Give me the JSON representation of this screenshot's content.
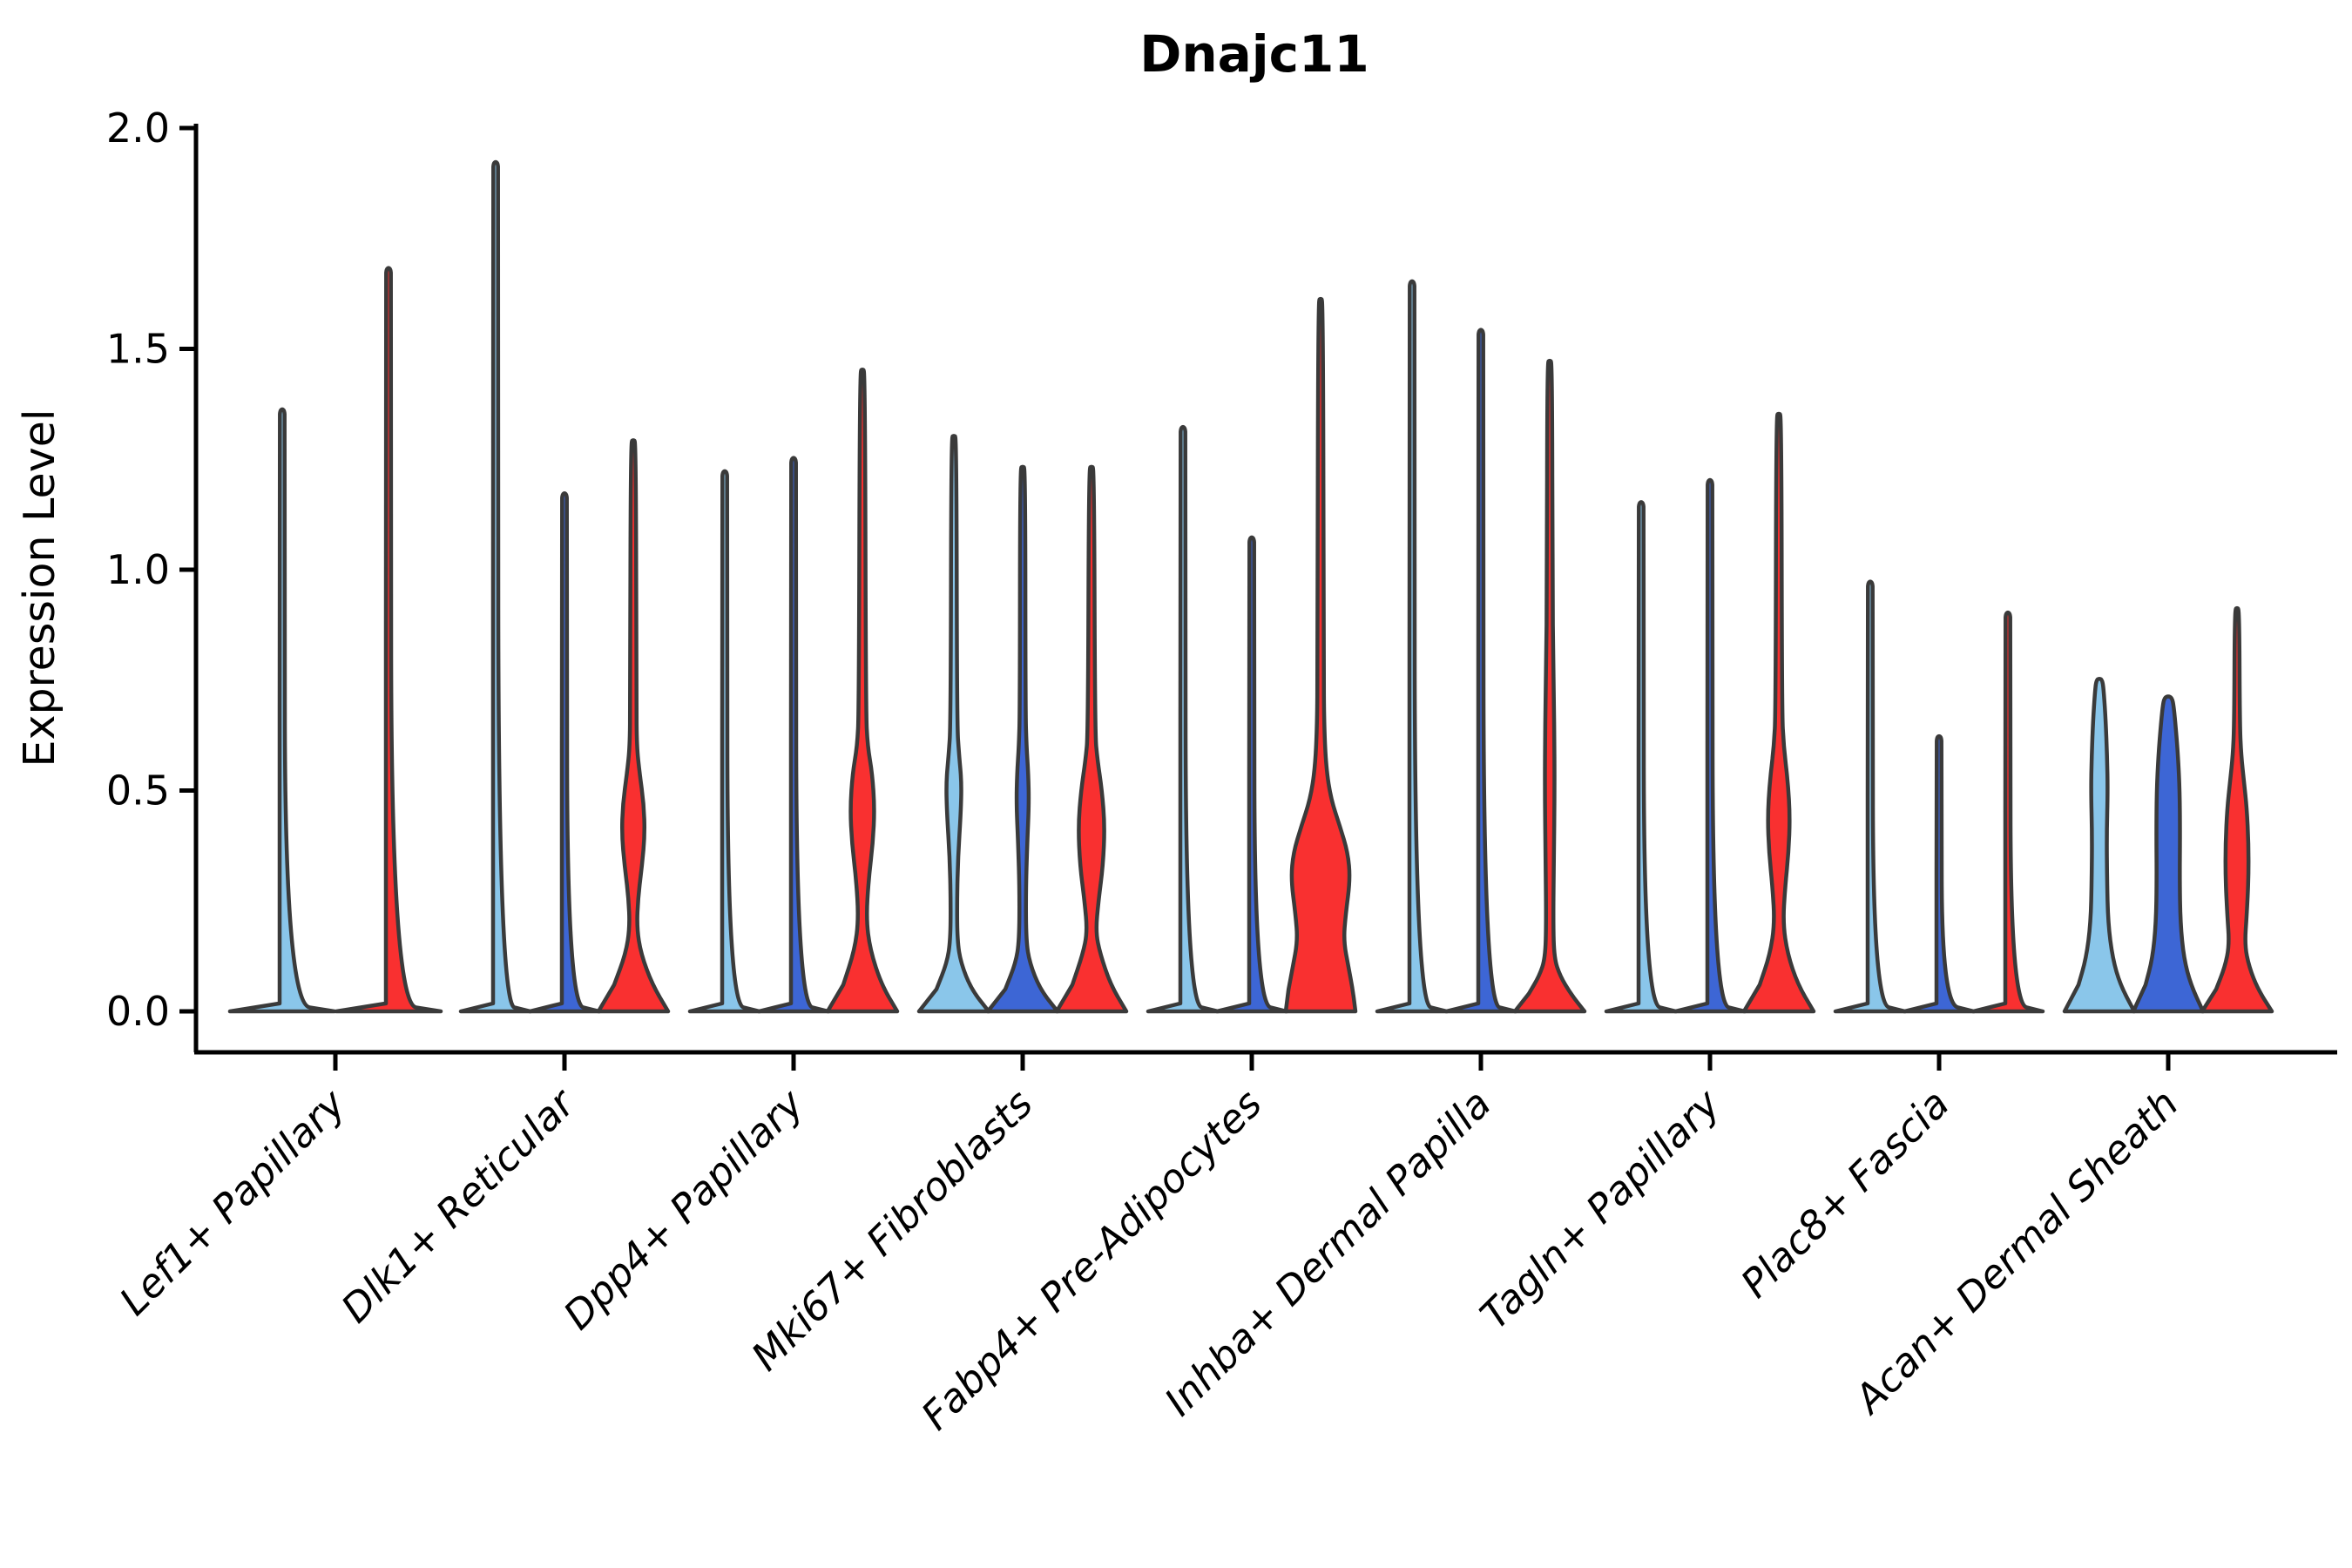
{
  "title": "Dnajc11",
  "y_axis": {
    "label": "Expression Level",
    "ticks": [
      "0.0",
      "0.5",
      "1.0",
      "1.5",
      "2.0"
    ],
    "tick_values": [
      0.0,
      0.5,
      1.0,
      1.5,
      2.0
    ],
    "range": [
      0.0,
      2.0
    ]
  },
  "colors": {
    "lightblue": "#8AC6EA",
    "blue": "#3D66D5",
    "red": "#F93030",
    "outline": "#3A3A3A",
    "axis": "#000000"
  },
  "chart_data": {
    "type": "violin",
    "title": "Dnajc11",
    "ylabel": "Expression Level",
    "ylim": [
      0.0,
      2.0
    ],
    "legend": "none",
    "grid": false,
    "note": "grouped violin plot, 3 split fills per cell type (lightblue, blue, red); profiles are [expression_value, relative_half_width] pairs",
    "groups": [
      {
        "label": "Lef1+ Papillary",
        "violins": [
          {
            "color": "lightblue",
            "max": 1.36,
            "shape": "spike"
          },
          {
            "color": "red",
            "max": 1.68,
            "shape": "spike"
          }
        ]
      },
      {
        "label": "Dlk1+ Reticular",
        "violins": [
          {
            "color": "lightblue",
            "max": 1.92,
            "shape": "spike"
          },
          {
            "color": "blue",
            "max": 1.17,
            "shape": "spike"
          },
          {
            "color": "red",
            "max": 1.29,
            "shape": "bulge",
            "p": [
              [
                0,
                1
              ],
              [
                0.06,
                0.55
              ],
              [
                0.13,
                0.22
              ],
              [
                0.19,
                0.1
              ],
              [
                0.26,
                0.14
              ],
              [
                0.33,
                0.25
              ],
              [
                0.4,
                0.33
              ],
              [
                0.47,
                0.3
              ],
              [
                0.54,
                0.18
              ],
              [
                0.6,
                0.1
              ],
              [
                0.7,
                0.09
              ],
              [
                1.29,
                0.075
              ]
            ]
          }
        ]
      },
      {
        "label": "Dpp4+ Papillary",
        "violins": [
          {
            "color": "lightblue",
            "max": 1.22,
            "shape": "spike"
          },
          {
            "color": "blue",
            "max": 1.25,
            "shape": "spike"
          },
          {
            "color": "red",
            "max": 1.45,
            "shape": "bulge",
            "p": [
              [
                0,
                1
              ],
              [
                0.06,
                0.55
              ],
              [
                0.14,
                0.22
              ],
              [
                0.21,
                0.11
              ],
              [
                0.3,
                0.18
              ],
              [
                0.38,
                0.3
              ],
              [
                0.46,
                0.35
              ],
              [
                0.54,
                0.28
              ],
              [
                0.6,
                0.15
              ],
              [
                0.68,
                0.1
              ],
              [
                1.45,
                0.075
              ]
            ]
          }
        ]
      },
      {
        "label": "Mki67+ Fibroblasts",
        "violins": [
          {
            "color": "lightblue",
            "max": 1.3,
            "shape": "bulge",
            "p": [
              [
                0,
                1
              ],
              [
                0.05,
                0.5
              ],
              [
                0.11,
                0.2
              ],
              [
                0.16,
                0.1
              ],
              [
                0.25,
                0.09
              ],
              [
                0.35,
                0.12
              ],
              [
                0.45,
                0.2
              ],
              [
                0.52,
                0.22
              ],
              [
                0.58,
                0.15
              ],
              [
                0.65,
                0.09
              ],
              [
                1.3,
                0.075
              ]
            ]
          },
          {
            "color": "blue",
            "max": 1.23,
            "shape": "bulge",
            "p": [
              [
                0,
                1
              ],
              [
                0.05,
                0.5
              ],
              [
                0.11,
                0.2
              ],
              [
                0.16,
                0.1
              ],
              [
                0.27,
                0.09
              ],
              [
                0.38,
                0.13
              ],
              [
                0.47,
                0.18
              ],
              [
                0.54,
                0.16
              ],
              [
                0.6,
                0.11
              ],
              [
                0.68,
                0.08
              ],
              [
                1.23,
                0.075
              ]
            ]
          },
          {
            "color": "red",
            "max": 1.23,
            "shape": "bulge",
            "p": [
              [
                0,
                1
              ],
              [
                0.06,
                0.55
              ],
              [
                0.13,
                0.25
              ],
              [
                0.18,
                0.12
              ],
              [
                0.25,
                0.2
              ],
              [
                0.33,
                0.33
              ],
              [
                0.42,
                0.38
              ],
              [
                0.5,
                0.3
              ],
              [
                0.57,
                0.17
              ],
              [
                0.63,
                0.1
              ],
              [
                1.23,
                0.075
              ]
            ]
          }
        ]
      },
      {
        "label": "Fabp4+ Pre-Adipocytes",
        "violins": [
          {
            "color": "lightblue",
            "max": 1.32,
            "shape": "spike"
          },
          {
            "color": "blue",
            "max": 1.07,
            "shape": "spike"
          },
          {
            "color": "red",
            "max": 1.61,
            "shape": "bulge",
            "p": [
              [
                0,
                1
              ],
              [
                0.05,
                0.92
              ],
              [
                0.1,
                0.8
              ],
              [
                0.16,
                0.66
              ],
              [
                0.22,
                0.72
              ],
              [
                0.3,
                0.85
              ],
              [
                0.36,
                0.78
              ],
              [
                0.42,
                0.55
              ],
              [
                0.48,
                0.3
              ],
              [
                0.55,
                0.16
              ],
              [
                0.65,
                0.1
              ],
              [
                0.78,
                0.09
              ],
              [
                1.61,
                0.07
              ]
            ]
          }
        ]
      },
      {
        "label": "Inhba+ Dermal Papilla",
        "violins": [
          {
            "color": "lightblue",
            "max": 1.65,
            "shape": "spike"
          },
          {
            "color": "blue",
            "max": 1.54,
            "shape": "spike"
          },
          {
            "color": "red",
            "max": 1.47,
            "shape": "bulge",
            "p": [
              [
                0,
                1
              ],
              [
                0.04,
                0.6
              ],
              [
                0.08,
                0.3
              ],
              [
                0.12,
                0.13
              ],
              [
                0.2,
                0.1
              ],
              [
                0.35,
                0.12
              ],
              [
                0.5,
                0.14
              ],
              [
                0.65,
                0.13
              ],
              [
                0.8,
                0.1
              ],
              [
                0.95,
                0.08
              ],
              [
                1.47,
                0.07
              ]
            ]
          }
        ]
      },
      {
        "label": "Tagln+ Papillary",
        "violins": [
          {
            "color": "lightblue",
            "max": 1.15,
            "shape": "spike"
          },
          {
            "color": "blue",
            "max": 1.2,
            "shape": "spike"
          },
          {
            "color": "red",
            "max": 1.35,
            "shape": "bulge",
            "p": [
              [
                0,
                1
              ],
              [
                0.06,
                0.55
              ],
              [
                0.13,
                0.25
              ],
              [
                0.2,
                0.12
              ],
              [
                0.28,
                0.18
              ],
              [
                0.36,
                0.28
              ],
              [
                0.44,
                0.32
              ],
              [
                0.52,
                0.26
              ],
              [
                0.6,
                0.14
              ],
              [
                0.68,
                0.09
              ],
              [
                1.35,
                0.075
              ]
            ]
          }
        ]
      },
      {
        "label": "Plac8+ Fascia",
        "violins": [
          {
            "color": "lightblue",
            "max": 0.97,
            "shape": "spike"
          },
          {
            "color": "blue",
            "max": 0.62,
            "shape": "spike"
          },
          {
            "color": "red",
            "max": 0.9,
            "shape": "spike"
          }
        ]
      },
      {
        "label": "Acan+ Dermal Sheath",
        "violins": [
          {
            "color": "lightblue",
            "max": 0.75,
            "shape": "bulge",
            "p": [
              [
                0,
                1
              ],
              [
                0.06,
                0.6
              ],
              [
                0.12,
                0.38
              ],
              [
                0.2,
                0.25
              ],
              [
                0.3,
                0.22
              ],
              [
                0.4,
                0.21
              ],
              [
                0.5,
                0.24
              ],
              [
                0.58,
                0.22
              ],
              [
                0.66,
                0.18
              ],
              [
                0.72,
                0.13
              ],
              [
                0.75,
                0.09
              ]
            ]
          },
          {
            "color": "blue",
            "max": 0.71,
            "shape": "bulge",
            "p": [
              [
                0,
                1
              ],
              [
                0.06,
                0.65
              ],
              [
                0.12,
                0.45
              ],
              [
                0.2,
                0.35
              ],
              [
                0.3,
                0.33
              ],
              [
                0.4,
                0.34
              ],
              [
                0.5,
                0.33
              ],
              [
                0.58,
                0.28
              ],
              [
                0.64,
                0.22
              ],
              [
                0.69,
                0.16
              ],
              [
                0.71,
                0.11
              ]
            ]
          },
          {
            "color": "red",
            "max": 0.91,
            "shape": "bulge",
            "p": [
              [
                0,
                1
              ],
              [
                0.05,
                0.6
              ],
              [
                0.1,
                0.35
              ],
              [
                0.15,
                0.22
              ],
              [
                0.22,
                0.28
              ],
              [
                0.3,
                0.33
              ],
              [
                0.38,
                0.33
              ],
              [
                0.46,
                0.28
              ],
              [
                0.52,
                0.2
              ],
              [
                0.58,
                0.12
              ],
              [
                0.65,
                0.08
              ],
              [
                0.91,
                0.065
              ]
            ]
          }
        ]
      }
    ]
  }
}
